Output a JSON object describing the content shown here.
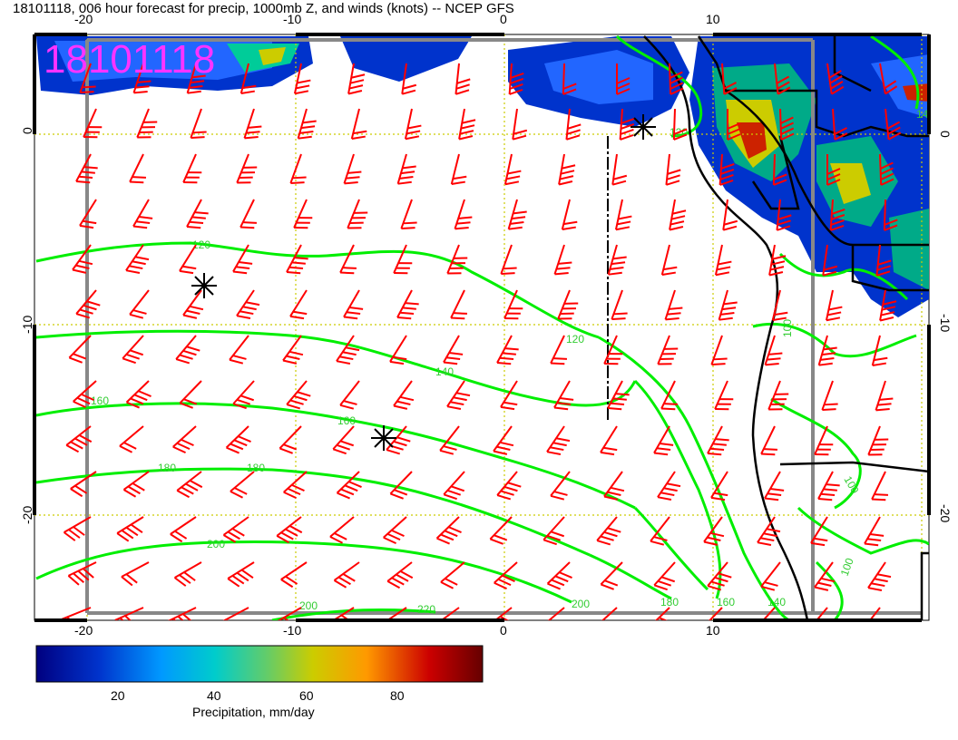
{
  "title": "18101118, 006 hour forecast for precip, 1000mb Z, and winds (knots) -- NCEP GFS",
  "stamp": "18101118",
  "lon_ticks": [
    "-20",
    "-10",
    "0",
    "10"
  ],
  "lat_ticks": [
    "0",
    "-10",
    "-20"
  ],
  "colorbar": {
    "label": "Precipitation, mm/day",
    "ticks": [
      "20",
      "40",
      "60",
      "80"
    ],
    "stops": [
      "#000080",
      "#0033cc",
      "#0099ff",
      "#00cccc",
      "#66cc66",
      "#cccc00",
      "#ff9900",
      "#cc0000",
      "#660000"
    ]
  },
  "contour_labels": [
    "120",
    "120",
    "140",
    "160",
    "160",
    "180",
    "180",
    "200",
    "200",
    "200",
    "220",
    "180",
    "160",
    "140",
    "120",
    "100",
    "100",
    "100",
    "140"
  ],
  "colors": {
    "barbs": "#ff0000",
    "contours": "#00ee00",
    "grid": "#cccc00",
    "coast": "#000000"
  },
  "icons": [
    "low-pressure-marker-icon",
    "wind-barb-icon"
  ]
}
